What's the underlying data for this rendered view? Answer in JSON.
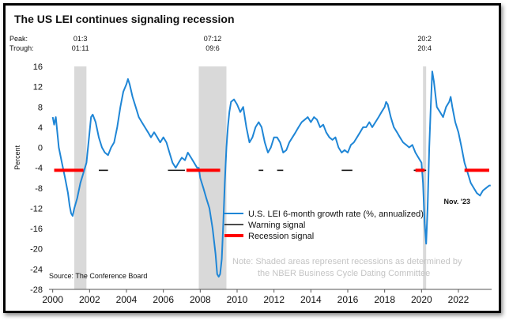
{
  "chart_data": {
    "type": "line",
    "title": "The US LEI continues signaling recession",
    "xlabel": "",
    "ylabel": "Percent",
    "ylim": [
      -28,
      16
    ],
    "yticks": [
      16,
      12,
      8,
      4,
      0,
      -4,
      -8,
      -12,
      -16,
      -20,
      -24,
      -28
    ],
    "xlim": [
      1999.8,
      2023.8
    ],
    "xticks": [
      2000,
      2002,
      2004,
      2006,
      2008,
      2010,
      2012,
      2014,
      2016,
      2018,
      2020,
      2022
    ],
    "peak_label": "Peak:",
    "trough_label": "Trough:",
    "recessions": [
      {
        "peak": "01:3",
        "trough": "01:11",
        "start": 2001.17,
        "end": 2001.83
      },
      {
        "peak": "07:12",
        "trough": "09:6",
        "start": 2007.92,
        "end": 2009.42
      },
      {
        "peak": "20:2",
        "trough": "20:4",
        "start": 2020.08,
        "end": 2020.25
      }
    ],
    "series": [
      {
        "name": "U.S. LEI 6-month growth rate (%, annualized)",
        "color": "#1f86d6",
        "points": [
          [
            2000.0,
            6
          ],
          [
            2000.08,
            4.5
          ],
          [
            2000.17,
            6
          ],
          [
            2000.25,
            3
          ],
          [
            2000.33,
            0
          ],
          [
            2000.5,
            -3
          ],
          [
            2000.67,
            -6
          ],
          [
            2000.83,
            -9
          ],
          [
            2000.92,
            -11.5
          ],
          [
            2001.0,
            -13
          ],
          [
            2001.08,
            -13.5
          ],
          [
            2001.17,
            -12
          ],
          [
            2001.33,
            -10
          ],
          [
            2001.5,
            -7
          ],
          [
            2001.67,
            -5
          ],
          [
            2001.83,
            -3
          ],
          [
            2002.0,
            3
          ],
          [
            2002.08,
            6
          ],
          [
            2002.17,
            6.5
          ],
          [
            2002.33,
            5
          ],
          [
            2002.5,
            2
          ],
          [
            2002.67,
            0
          ],
          [
            2002.83,
            -1
          ],
          [
            2003.0,
            -1.5
          ],
          [
            2003.17,
            0
          ],
          [
            2003.33,
            1
          ],
          [
            2003.5,
            4
          ],
          [
            2003.67,
            8
          ],
          [
            2003.83,
            11
          ],
          [
            2004.0,
            12.5
          ],
          [
            2004.08,
            13.5
          ],
          [
            2004.17,
            12.5
          ],
          [
            2004.33,
            10
          ],
          [
            2004.5,
            8
          ],
          [
            2004.67,
            6
          ],
          [
            2004.83,
            5
          ],
          [
            2005.0,
            4
          ],
          [
            2005.17,
            3
          ],
          [
            2005.33,
            2
          ],
          [
            2005.5,
            3
          ],
          [
            2005.67,
            2
          ],
          [
            2005.83,
            1
          ],
          [
            2006.0,
            2
          ],
          [
            2006.17,
            1
          ],
          [
            2006.33,
            -1
          ],
          [
            2006.5,
            -3
          ],
          [
            2006.67,
            -4
          ],
          [
            2006.83,
            -3
          ],
          [
            2007.0,
            -2
          ],
          [
            2007.17,
            -2.5
          ],
          [
            2007.33,
            -1
          ],
          [
            2007.5,
            -2
          ],
          [
            2007.67,
            -3
          ],
          [
            2007.83,
            -4
          ],
          [
            2007.92,
            -4
          ],
          [
            2008.0,
            -6
          ],
          [
            2008.17,
            -8
          ],
          [
            2008.33,
            -10
          ],
          [
            2008.5,
            -12
          ],
          [
            2008.67,
            -16
          ],
          [
            2008.83,
            -21
          ],
          [
            2008.92,
            -25
          ],
          [
            2009.0,
            -25.5
          ],
          [
            2009.08,
            -25
          ],
          [
            2009.17,
            -22
          ],
          [
            2009.25,
            -15
          ],
          [
            2009.33,
            -7
          ],
          [
            2009.42,
            0
          ],
          [
            2009.5,
            4
          ],
          [
            2009.58,
            7
          ],
          [
            2009.67,
            9
          ],
          [
            2009.83,
            9.5
          ],
          [
            2010.0,
            8.5
          ],
          [
            2010.17,
            7
          ],
          [
            2010.33,
            8
          ],
          [
            2010.5,
            4
          ],
          [
            2010.67,
            1
          ],
          [
            2010.83,
            2
          ],
          [
            2011.0,
            4
          ],
          [
            2011.17,
            5
          ],
          [
            2011.33,
            4
          ],
          [
            2011.5,
            1
          ],
          [
            2011.67,
            -1
          ],
          [
            2011.83,
            0
          ],
          [
            2012.0,
            2
          ],
          [
            2012.17,
            2
          ],
          [
            2012.33,
            1
          ],
          [
            2012.5,
            -1
          ],
          [
            2012.67,
            -0.5
          ],
          [
            2012.83,
            1
          ],
          [
            2013.0,
            2
          ],
          [
            2013.17,
            3
          ],
          [
            2013.33,
            4
          ],
          [
            2013.5,
            5
          ],
          [
            2013.67,
            5.5
          ],
          [
            2013.83,
            6
          ],
          [
            2014.0,
            5
          ],
          [
            2014.17,
            6
          ],
          [
            2014.33,
            5.5
          ],
          [
            2014.5,
            4
          ],
          [
            2014.67,
            4.5
          ],
          [
            2014.83,
            3
          ],
          [
            2015.0,
            2
          ],
          [
            2015.17,
            1.5
          ],
          [
            2015.33,
            2
          ],
          [
            2015.5,
            0
          ],
          [
            2015.67,
            -1
          ],
          [
            2015.83,
            -0.5
          ],
          [
            2016.0,
            -1
          ],
          [
            2016.17,
            0.5
          ],
          [
            2016.33,
            1
          ],
          [
            2016.5,
            2
          ],
          [
            2016.67,
            3
          ],
          [
            2016.83,
            4
          ],
          [
            2017.0,
            4
          ],
          [
            2017.17,
            5
          ],
          [
            2017.33,
            4
          ],
          [
            2017.5,
            5
          ],
          [
            2017.67,
            6
          ],
          [
            2017.83,
            7
          ],
          [
            2018.0,
            8
          ],
          [
            2018.08,
            9
          ],
          [
            2018.17,
            8.5
          ],
          [
            2018.33,
            6
          ],
          [
            2018.5,
            4
          ],
          [
            2018.67,
            3
          ],
          [
            2018.83,
            2
          ],
          [
            2019.0,
            1
          ],
          [
            2019.17,
            0.5
          ],
          [
            2019.33,
            0
          ],
          [
            2019.5,
            0.5
          ],
          [
            2019.67,
            -1
          ],
          [
            2019.83,
            -2
          ],
          [
            2020.0,
            -3
          ],
          [
            2020.08,
            -7
          ],
          [
            2020.17,
            -15
          ],
          [
            2020.25,
            -19
          ],
          [
            2020.33,
            -12
          ],
          [
            2020.42,
            0
          ],
          [
            2020.5,
            8
          ],
          [
            2020.58,
            15
          ],
          [
            2020.67,
            13
          ],
          [
            2020.83,
            8
          ],
          [
            2021.0,
            7
          ],
          [
            2021.17,
            6
          ],
          [
            2021.33,
            8
          ],
          [
            2021.5,
            9
          ],
          [
            2021.58,
            10
          ],
          [
            2021.67,
            8
          ],
          [
            2021.83,
            5
          ],
          [
            2022.0,
            3
          ],
          [
            2022.17,
            0
          ],
          [
            2022.33,
            -3
          ],
          [
            2022.5,
            -5
          ],
          [
            2022.67,
            -7
          ],
          [
            2022.83,
            -8
          ],
          [
            2023.0,
            -9
          ],
          [
            2023.17,
            -9.5
          ],
          [
            2023.33,
            -8.5
          ],
          [
            2023.5,
            -8
          ],
          [
            2023.67,
            -7.5
          ],
          [
            2023.75,
            -7.5
          ]
        ]
      },
      {
        "name": "Warning signal",
        "color": "#111111",
        "segments": [
          [
            2002.5,
            2003.0
          ],
          [
            2006.25,
            2007.17
          ],
          [
            2011.17,
            2011.42
          ],
          [
            2012.17,
            2012.5
          ],
          [
            2015.67,
            2016.25
          ],
          [
            2019.58,
            2020.25
          ]
        ]
      },
      {
        "name": "Recession signal",
        "color": "#ff0000",
        "segments": [
          [
            2000.08,
            2001.67
          ],
          [
            2007.25,
            2009.08
          ],
          [
            2019.67,
            2020.17
          ],
          [
            2022.33,
            2023.67
          ]
        ]
      }
    ],
    "warning_level": -4.5,
    "recession_level": -4.5,
    "annotations": {
      "source": "Source: The Conference Board",
      "note_line1": "Note: Shaded areas represent recessions as determined by",
      "note_line2": "the NBER Business Cycle Dating Committee",
      "end_label": "Nov. '23"
    },
    "legend_position": "center-right",
    "grid": false
  }
}
